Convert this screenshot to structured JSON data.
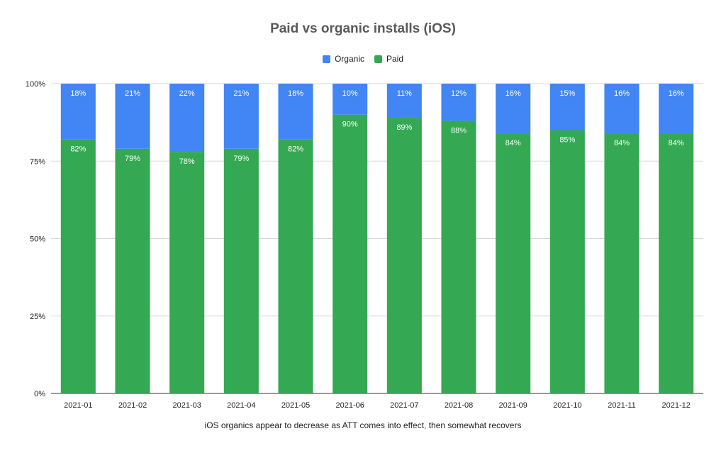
{
  "chart_data": {
    "type": "bar",
    "stacked": true,
    "title": "Paid vs organic installs (iOS)",
    "caption": "iOS organics appear to decrease as ATT comes into effect, then somewhat recovers",
    "xlabel": "",
    "ylabel": "",
    "ylim": [
      0,
      100
    ],
    "y_ticks": [
      "0%",
      "25%",
      "50%",
      "75%",
      "100%"
    ],
    "legend_position": "top",
    "grid": true,
    "categories": [
      "2021-01",
      "2021-02",
      "2021-03",
      "2021-04",
      "2021-05",
      "2021-06",
      "2021-07",
      "2021-08",
      "2021-09",
      "2021-10",
      "2021-11",
      "2021-12"
    ],
    "series": [
      {
        "name": "Paid",
        "color": "#34a853",
        "values": [
          82,
          79,
          78,
          79,
          82,
          90,
          89,
          88,
          84,
          85,
          84,
          84
        ],
        "labels": [
          "82%",
          "79%",
          "78%",
          "79%",
          "82%",
          "90%",
          "89%",
          "88%",
          "84%",
          "85%",
          "84%",
          "84%"
        ]
      },
      {
        "name": "Organic",
        "color": "#4285f4",
        "values": [
          18,
          21,
          22,
          21,
          18,
          10,
          11,
          12,
          16,
          15,
          16,
          16
        ],
        "labels": [
          "18%",
          "21%",
          "22%",
          "21%",
          "18%",
          "10%",
          "11%",
          "12%",
          "16%",
          "15%",
          "16%",
          "16%"
        ]
      }
    ],
    "legend": [
      {
        "name": "Organic",
        "color": "#4285f4"
      },
      {
        "name": "Paid",
        "color": "#34a853"
      }
    ]
  }
}
